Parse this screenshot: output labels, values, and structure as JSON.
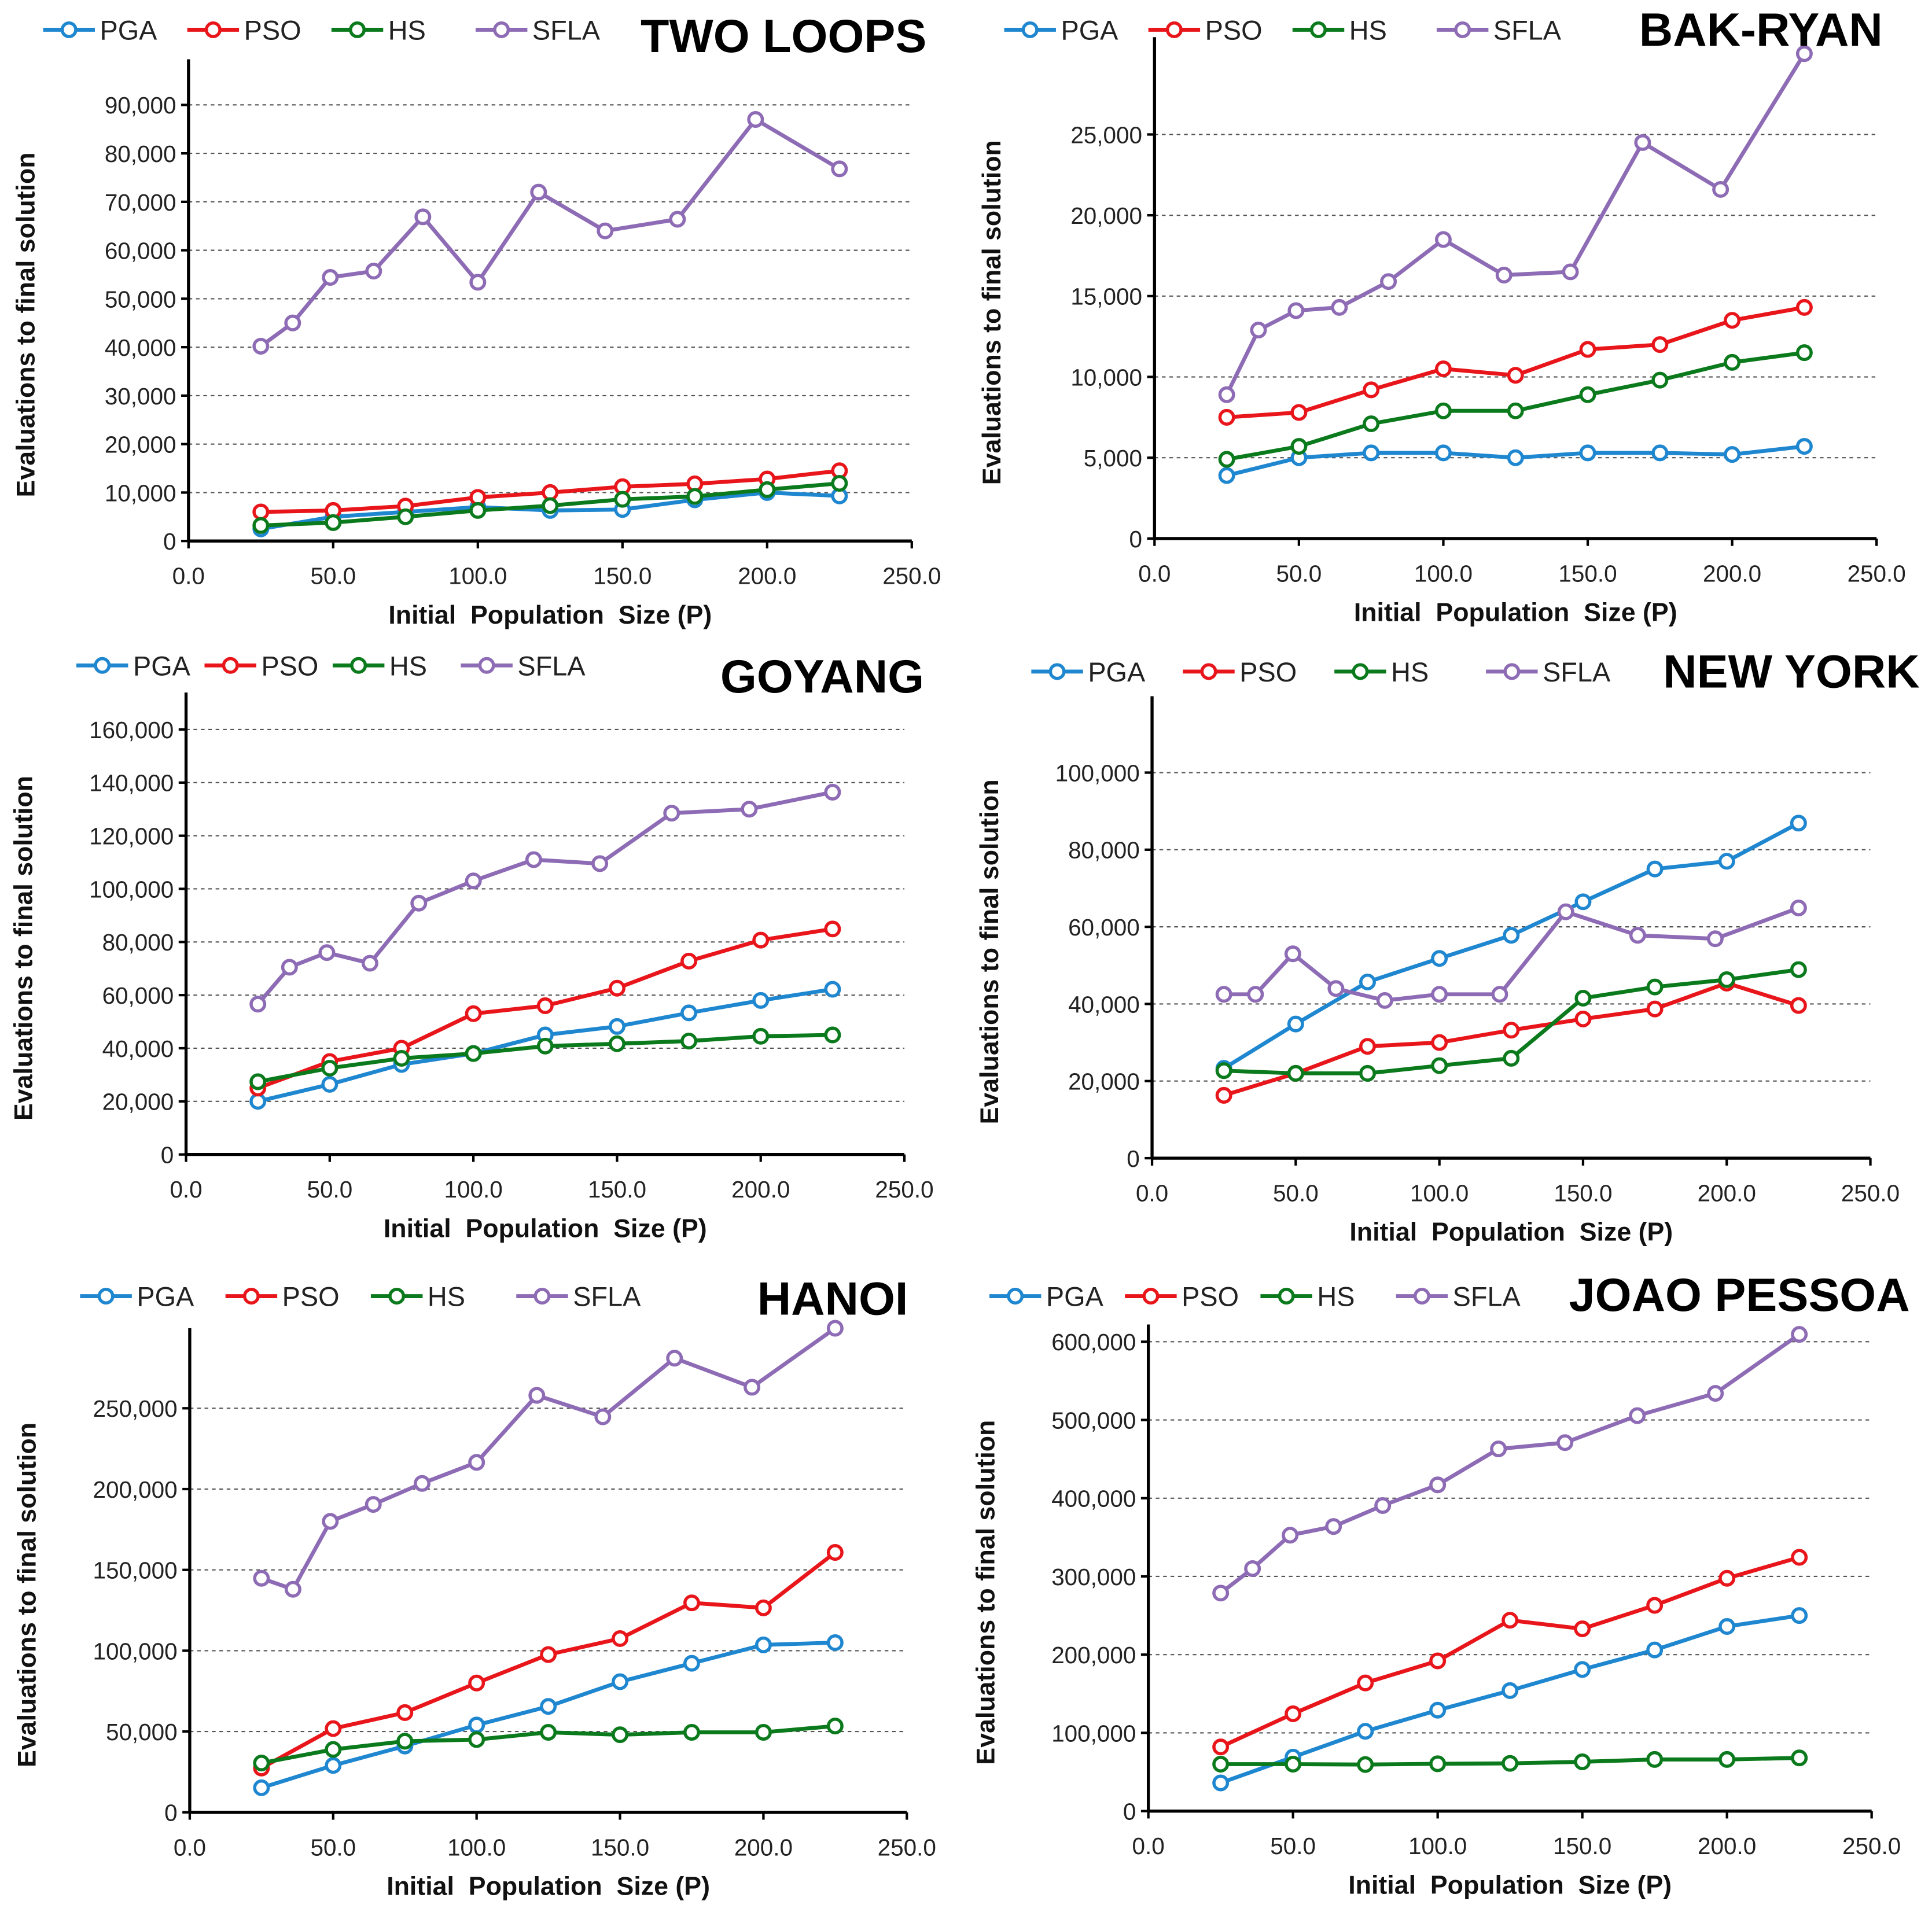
{
  "chart_data": [
    {
      "type": "line",
      "title": "TWO LOOPS",
      "xlabel": "Initial  Population  Size (P)",
      "ylabel": "Evaluations to final solution",
      "xlim": [
        0,
        250
      ],
      "ylim": [
        0,
        90000
      ],
      "x_ticks": [
        "0.0",
        "50.0",
        "100.0",
        "150.0",
        "200.0",
        "250.0"
      ],
      "y_ticks": [
        "0",
        "10,000",
        "20,000",
        "30,000",
        "40,000",
        "50,000",
        "60,000",
        "70,000",
        "80,000",
        "90,000"
      ],
      "grid": "horizontal dashed",
      "legend": "top-left",
      "series": [
        {
          "name": "PGA",
          "color": "#1f87d0",
          "x": [
            25,
            50,
            75,
            100,
            125,
            150,
            175,
            200,
            225
          ],
          "values": [
            2500,
            5000,
            6000,
            7000,
            6300,
            6500,
            8500,
            10000,
            9300
          ]
        },
        {
          "name": "PSO",
          "color": "#e8161b",
          "x": [
            25,
            50,
            75,
            100,
            125,
            150,
            175,
            200,
            225
          ],
          "values": [
            6000,
            6300,
            7200,
            9000,
            10000,
            11200,
            11800,
            12800,
            14500
          ]
        },
        {
          "name": "HS",
          "color": "#0b7a1c",
          "x": [
            25,
            50,
            75,
            100,
            125,
            150,
            175,
            200,
            225
          ],
          "values": [
            3200,
            3800,
            5000,
            6300,
            7300,
            8600,
            9200,
            10600,
            11900
          ]
        },
        {
          "name": "SFLA",
          "color": "#8e6bb5",
          "x": [
            25,
            36,
            49,
            64,
            81,
            100,
            121,
            144,
            169,
            196,
            225
          ],
          "values": [
            40200,
            45000,
            54400,
            55700,
            66900,
            53400,
            72000,
            64000,
            66400,
            87000,
            76800
          ]
        }
      ]
    },
    {
      "type": "line",
      "title": "BAK-RYAN",
      "xlabel": "Initial  Population  Size (P)",
      "ylabel": "Evaluations to final solution",
      "xlim": [
        0,
        250
      ],
      "ylim": [
        0,
        30000
      ],
      "x_ticks": [
        "0.0",
        "50.0",
        "100.0",
        "150.0",
        "200.0",
        "250.0"
      ],
      "y_ticks": [
        "0",
        "5,000",
        "10,000",
        "15,000",
        "20,000",
        "25,000"
      ],
      "grid": "horizontal dashed",
      "legend": "top-left",
      "series": [
        {
          "name": "PGA",
          "color": "#1f87d0",
          "x": [
            25,
            50,
            75,
            100,
            125,
            150,
            175,
            200,
            225
          ],
          "values": [
            3900,
            5000,
            5300,
            5300,
            5000,
            5300,
            5300,
            5200,
            5700
          ]
        },
        {
          "name": "PSO",
          "color": "#e8161b",
          "x": [
            25,
            50,
            75,
            100,
            125,
            150,
            175,
            200,
            225
          ],
          "values": [
            7500,
            7800,
            9200,
            10500,
            10100,
            11700,
            12000,
            13500,
            14300
          ]
        },
        {
          "name": "HS",
          "color": "#0b7a1c",
          "x": [
            25,
            50,
            75,
            100,
            125,
            150,
            175,
            200,
            225
          ],
          "values": [
            4900,
            5700,
            7100,
            7900,
            7900,
            8900,
            9800,
            10900,
            11500
          ]
        },
        {
          "name": "SFLA",
          "color": "#8e6bb5",
          "x": [
            25,
            36,
            49,
            64,
            81,
            100,
            121,
            144,
            169,
            196,
            225
          ],
          "values": [
            8900,
            12900,
            14100,
            14300,
            15900,
            18500,
            16300,
            16500,
            24500,
            21600,
            30000
          ]
        }
      ]
    },
    {
      "type": "line",
      "title": "GOYANG",
      "xlabel": "Initial  Population  Size (P)",
      "ylabel": "Evaluations to final solution",
      "xlim": [
        0,
        250
      ],
      "ylim": [
        0,
        170000
      ],
      "x_ticks": [
        "0.0",
        "50.0",
        "100.0",
        "150.0",
        "200.0",
        "250.0"
      ],
      "y_ticks": [
        "0",
        "20,000",
        "40,000",
        "60,000",
        "80,000",
        "100,000",
        "120,000",
        "140,000",
        "160,000"
      ],
      "grid": "horizontal dashed",
      "legend": "top-left",
      "series": [
        {
          "name": "PGA",
          "color": "#1f87d0",
          "x": [
            25,
            50,
            75,
            100,
            125,
            150,
            175,
            200,
            225
          ],
          "values": [
            20000,
            26400,
            33900,
            38000,
            45000,
            48200,
            53300,
            58000,
            62200
          ]
        },
        {
          "name": "PSO",
          "color": "#e8161b",
          "x": [
            25,
            50,
            75,
            100,
            125,
            150,
            175,
            200,
            225
          ],
          "values": [
            25000,
            35000,
            40000,
            53000,
            56000,
            62600,
            72800,
            80700,
            84900
          ]
        },
        {
          "name": "HS",
          "color": "#0b7a1c",
          "x": [
            25,
            50,
            75,
            100,
            125,
            150,
            175,
            200,
            225
          ],
          "values": [
            27400,
            32500,
            36200,
            38000,
            40800,
            41700,
            42700,
            44500,
            45000
          ]
        },
        {
          "name": "SFLA",
          "color": "#8e6bb5",
          "x": [
            25,
            36,
            49,
            64,
            81,
            100,
            121,
            144,
            169,
            196,
            225
          ],
          "values": [
            56600,
            70500,
            76000,
            72000,
            94600,
            103000,
            111000,
            109500,
            128500,
            130000,
            136400
          ]
        }
      ]
    },
    {
      "type": "line",
      "title": "NEW YORK",
      "xlabel": "Initial  Population  Size (P)",
      "ylabel": "Evaluations to final solution",
      "xlim": [
        0,
        250
      ],
      "ylim": [
        0,
        120000
      ],
      "x_ticks": [
        "0.0",
        "50.0",
        "100.0",
        "150.0",
        "200.0",
        "250.0"
      ],
      "y_ticks": [
        "0",
        "20,000",
        "40,000",
        "60,000",
        "80,000",
        "100,000"
      ],
      "grid": "horizontal dashed",
      "legend": "top-left",
      "series": [
        {
          "name": "PGA",
          "color": "#1f87d0",
          "x": [
            25,
            50,
            75,
            100,
            125,
            150,
            175,
            200,
            225
          ],
          "values": [
            23300,
            34800,
            45700,
            51800,
            57800,
            66500,
            75000,
            77000,
            86900
          ]
        },
        {
          "name": "PSO",
          "color": "#e8161b",
          "x": [
            25,
            50,
            75,
            100,
            125,
            150,
            175,
            200,
            225
          ],
          "values": [
            16300,
            22000,
            29000,
            30000,
            33200,
            36100,
            38700,
            45400,
            39600
          ]
        },
        {
          "name": "HS",
          "color": "#0b7a1c",
          "x": [
            25,
            50,
            75,
            100,
            125,
            150,
            175,
            200,
            225
          ],
          "values": [
            22700,
            22000,
            22000,
            24000,
            25900,
            41500,
            44400,
            46300,
            48900
          ]
        },
        {
          "name": "SFLA",
          "color": "#8e6bb5",
          "x": [
            25,
            36,
            49,
            64,
            81,
            100,
            121,
            144,
            169,
            196,
            225
          ],
          "values": [
            42500,
            42500,
            53000,
            44000,
            40900,
            42500,
            42500,
            63900,
            57800,
            56900,
            64900
          ]
        }
      ]
    },
    {
      "type": "line",
      "title": "HANOI",
      "xlabel": "Initial  Population  Size (P)",
      "ylabel": "Evaluations to final solution",
      "xlim": [
        0,
        250
      ],
      "ylim": [
        0,
        300000
      ],
      "x_ticks": [
        "0.0",
        "50.0",
        "100.0",
        "150.0",
        "200.0",
        "250.0"
      ],
      "y_ticks": [
        "0",
        "50,000",
        "100,000",
        "150,000",
        "200,000",
        "250,000"
      ],
      "grid": "horizontal dashed",
      "legend": "top-left",
      "series": [
        {
          "name": "PGA",
          "color": "#1f87d0",
          "x": [
            25,
            50,
            75,
            100,
            125,
            150,
            175,
            200,
            225
          ],
          "values": [
            15200,
            29000,
            41000,
            54000,
            65500,
            80800,
            92200,
            103600,
            105000
          ]
        },
        {
          "name": "PSO",
          "color": "#e8161b",
          "x": [
            25,
            50,
            75,
            100,
            125,
            150,
            175,
            200,
            225
          ],
          "values": [
            27400,
            51800,
            61700,
            80000,
            97600,
            107500,
            129600,
            126500,
            160800
          ]
        },
        {
          "name": "HS",
          "color": "#0b7a1c",
          "x": [
            25,
            50,
            75,
            100,
            125,
            150,
            175,
            200,
            225
          ],
          "values": [
            30500,
            38900,
            44000,
            45000,
            49500,
            48000,
            49500,
            49500,
            53400
          ]
        },
        {
          "name": "SFLA",
          "color": "#8e6bb5",
          "x": [
            25,
            36,
            49,
            64,
            81,
            100,
            121,
            144,
            169,
            196,
            225
          ],
          "values": [
            144800,
            138000,
            180000,
            190500,
            203500,
            216500,
            258000,
            244700,
            281000,
            263000,
            299500
          ]
        }
      ]
    },
    {
      "type": "line",
      "title": "JOAO PESSOA",
      "xlabel": "Initial  Population  Size (P)",
      "ylabel": "Evaluations to final solution",
      "xlim": [
        0,
        250
      ],
      "ylim": [
        0,
        600000
      ],
      "x_ticks": [
        "0.0",
        "50.0",
        "100.0",
        "150.0",
        "200.0",
        "250.0"
      ],
      "y_ticks": [
        "0",
        "100,000",
        "200,000",
        "300,000",
        "400,000",
        "500,000",
        "600,000"
      ],
      "grid": "horizontal dashed",
      "legend": "top-left",
      "series": [
        {
          "name": "PGA",
          "color": "#1f87d0",
          "x": [
            25,
            50,
            75,
            100,
            125,
            150,
            175,
            200,
            225
          ],
          "values": [
            36000,
            69000,
            102000,
            129000,
            154000,
            181000,
            206000,
            236000,
            250000
          ]
        },
        {
          "name": "PSO",
          "color": "#e8161b",
          "x": [
            25,
            50,
            75,
            100,
            125,
            150,
            175,
            200,
            225
          ],
          "values": [
            82000,
            124400,
            163800,
            192000,
            244000,
            233000,
            263000,
            297600,
            324400
          ]
        },
        {
          "name": "HS",
          "color": "#0b7a1c",
          "x": [
            25,
            50,
            75,
            100,
            125,
            150,
            175,
            200,
            225
          ],
          "values": [
            60000,
            60000,
            59500,
            60500,
            61000,
            63000,
            66000,
            66000,
            68000
          ]
        },
        {
          "name": "SFLA",
          "color": "#8e6bb5",
          "x": [
            25,
            36,
            49,
            64,
            81,
            100,
            121,
            144,
            169,
            196,
            225
          ],
          "values": [
            278700,
            310000,
            352700,
            363800,
            390600,
            417000,
            463000,
            471000,
            505500,
            534000,
            609400
          ]
        }
      ]
    }
  ]
}
